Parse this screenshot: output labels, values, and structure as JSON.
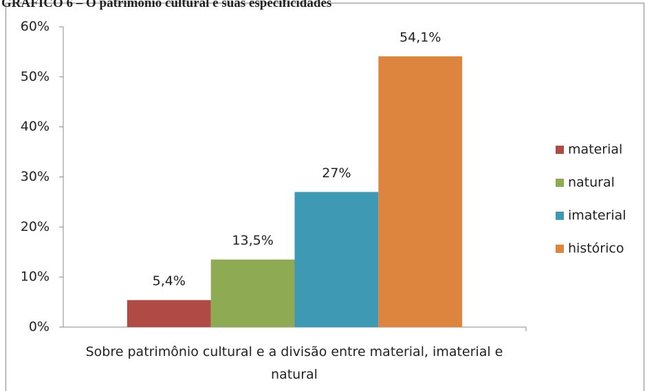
{
  "chart_data": {
    "type": "bar",
    "title": "GRÁFICO 6 – O patrimônio cultural e suas especificidades",
    "categories": [
      "Sobre patrimônio cultural e a divisão entre material, imaterial e natural"
    ],
    "series": [
      {
        "name": "material",
        "color": "#b04a45",
        "values": [
          5.4
        ],
        "value_labels": [
          "5,4%"
        ]
      },
      {
        "name": "natural",
        "color": "#8eaa52",
        "values": [
          13.5
        ],
        "value_labels": [
          "13,5%"
        ]
      },
      {
        "name": "imaterial",
        "color": "#3e9ab4",
        "values": [
          27
        ],
        "value_labels": [
          "27%"
        ]
      },
      {
        "name": "histórico",
        "color": "#dd843f",
        "values": [
          54.1
        ],
        "value_labels": [
          "54,1%"
        ]
      }
    ],
    "ylim": [
      0,
      60
    ],
    "yticks": [
      {
        "value": 0,
        "label": "0%"
      },
      {
        "value": 10,
        "label": "10%"
      },
      {
        "value": 20,
        "label": "20%"
      },
      {
        "value": 30,
        "label": "30%"
      },
      {
        "value": 40,
        "label": "40%"
      },
      {
        "value": 50,
        "label": "50%"
      },
      {
        "value": 60,
        "label": "60%"
      }
    ],
    "grid": false,
    "legend": "right"
  }
}
